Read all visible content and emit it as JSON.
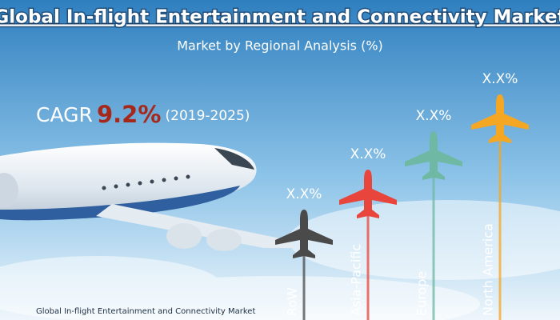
{
  "header": {
    "title": "Global In-flight Entertainment and Connectivity Market",
    "subtitle": "Market by Regional Analysis (%)"
  },
  "cagr": {
    "label": "CAGR",
    "value": "9.2%",
    "period": "(2019-2025)"
  },
  "regions": [
    {
      "name": "RoW",
      "value_label": "X.X%",
      "color": "#4a4a4a"
    },
    {
      "name": "Asia-Pacific",
      "value_label": "X.X%",
      "color": "#e8453c"
    },
    {
      "name": "Europe",
      "value_label": "X.X%",
      "color": "#6fb8a4"
    },
    {
      "name": "North America",
      "value_label": "X.X%",
      "color": "#f5a623"
    }
  ],
  "footer": "Global In-flight Entertainment and Connectivity Market"
}
